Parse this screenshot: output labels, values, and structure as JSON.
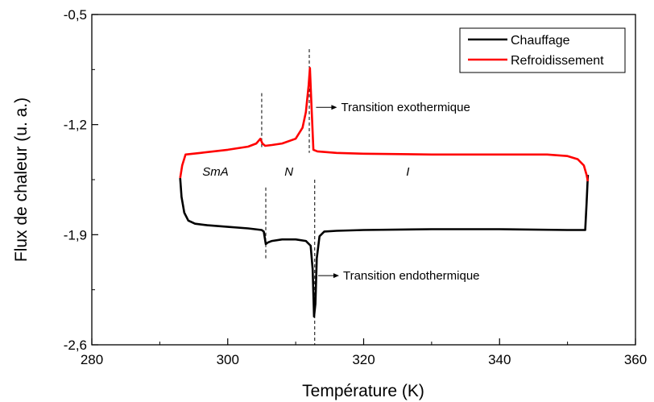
{
  "chart_data": {
    "type": "line",
    "xlabel": "Température (K)",
    "ylabel": "Flux de chaleur (u. a.)",
    "xlim": [
      280,
      360
    ],
    "ylim": [
      -2.6,
      -0.5
    ],
    "x_ticks": [
      "280",
      "300",
      "320",
      "340",
      "360"
    ],
    "y_ticks": [
      "-0,5",
      "-1,2",
      "-1,9",
      "-2,6"
    ],
    "legend_position": "top-right",
    "series": [
      {
        "name": "Chauffage",
        "color": "#000000",
        "x": [
          293.0,
          293.2,
          293.6,
          294.2,
          295.2,
          297.0,
          300.0,
          303.0,
          305.0,
          305.3,
          305.6,
          305.9,
          306.5,
          308.0,
          310.0,
          311.5,
          312.2,
          312.5,
          312.7,
          312.9,
          313.1,
          313.5,
          314.2,
          316.0,
          320.0,
          330.0,
          340.0,
          350.0,
          352.6,
          352.8,
          353.0
        ],
        "y": [
          -1.54,
          -1.66,
          -1.76,
          -1.81,
          -1.83,
          -1.84,
          -1.85,
          -1.86,
          -1.87,
          -1.88,
          -1.96,
          -1.95,
          -1.94,
          -1.93,
          -1.93,
          -1.94,
          -1.97,
          -2.12,
          -2.42,
          -2.34,
          -2.05,
          -1.91,
          -1.88,
          -1.875,
          -1.87,
          -1.865,
          -1.865,
          -1.87,
          -1.87,
          -1.7,
          -1.52
        ]
      },
      {
        "name": "Refroidissement",
        "color": "#ff0000",
        "x": [
          293.0,
          293.3,
          293.8,
          296.0,
          300.0,
          303.0,
          304.2,
          304.8,
          305.1,
          305.5,
          306.5,
          308.0,
          310.0,
          311.0,
          311.5,
          311.9,
          312.1,
          312.3,
          312.6,
          313.2,
          316.0,
          320.0,
          330.0,
          340.0,
          347.0,
          350.0,
          351.5,
          352.4,
          352.8,
          353.0
        ],
        "y": [
          -1.54,
          -1.46,
          -1.39,
          -1.38,
          -1.36,
          -1.34,
          -1.32,
          -1.29,
          -1.32,
          -1.335,
          -1.33,
          -1.32,
          -1.29,
          -1.22,
          -1.12,
          -0.95,
          -0.84,
          -1.05,
          -1.36,
          -1.37,
          -1.38,
          -1.385,
          -1.39,
          -1.39,
          -1.39,
          -1.4,
          -1.42,
          -1.46,
          -1.52,
          -1.56
        ]
      }
    ],
    "dashed_lines": [
      {
        "x": 305.0,
        "y_top": -1.0,
        "y_bottom": -1.35
      },
      {
        "x": 312.0,
        "y_top": -0.72,
        "y_bottom": -1.38
      },
      {
        "x": 305.6,
        "y_top": -1.6,
        "y_bottom": -2.05
      },
      {
        "x": 312.8,
        "y_top": -1.55,
        "y_bottom": -2.6
      }
    ],
    "annotations": [
      {
        "text": "Transition exothermique",
        "x": 313.0,
        "y": -1.09,
        "arrow": true
      },
      {
        "text": "Transition endothermique",
        "x": 313.3,
        "y": -2.16,
        "arrow": true
      },
      {
        "text": "SmA",
        "x": 298.2,
        "y": -1.5,
        "italic": true
      },
      {
        "text": "N",
        "x": 309.0,
        "y": -1.5,
        "italic": true
      },
      {
        "text": "I",
        "x": 326.5,
        "y": -1.5,
        "italic": true
      }
    ]
  }
}
